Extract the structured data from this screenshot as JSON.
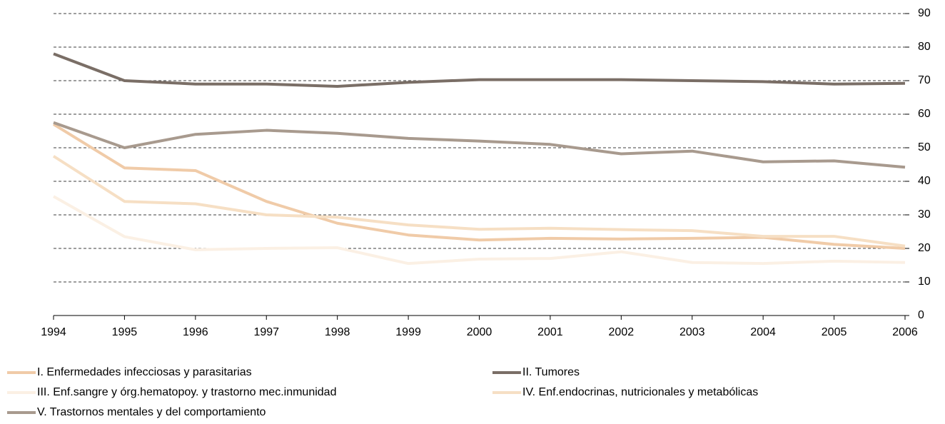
{
  "chart_data": {
    "type": "line",
    "x": [
      1994,
      1995,
      1996,
      1997,
      1998,
      1999,
      2000,
      2001,
      2002,
      2003,
      2004,
      2005,
      2006
    ],
    "xlim": [
      1994,
      2006
    ],
    "xticks": [
      1994,
      1995,
      1996,
      1997,
      1998,
      1999,
      2000,
      2001,
      2002,
      2003,
      2004,
      2005,
      2006
    ],
    "ylim": [
      0,
      90
    ],
    "yticks": [
      0,
      10,
      20,
      30,
      40,
      50,
      60,
      70,
      80,
      90
    ],
    "grid": true,
    "series": [
      {
        "name": "I. Enfermedades infecciosas y parasitarias",
        "color": "#f0cba8",
        "values": [
          57,
          44,
          43.2,
          34,
          27.5,
          24,
          22.5,
          23,
          22.8,
          23,
          23.3,
          21.2,
          20
        ]
      },
      {
        "name": "II. Tumores",
        "color": "#7a6e66",
        "values": [
          78,
          70,
          69,
          69,
          68.3,
          69.5,
          70.3,
          70.3,
          70.3,
          70,
          69.7,
          69,
          69.2
        ]
      },
      {
        "name": "III. Enf.sangre y órg.hematopoy. y trastorno mec.inmunidad",
        "color": "#fbf0e4",
        "values": [
          35.5,
          23.5,
          19.6,
          20,
          20.2,
          15.5,
          16.8,
          17,
          19,
          15.8,
          15.5,
          16.2,
          15.8
        ]
      },
      {
        "name": "IV. Enf.endocrinas, nutricionales y metabólicas",
        "color": "#f6dfc4",
        "values": [
          47.5,
          34,
          33.3,
          30,
          29.3,
          27,
          25.7,
          26,
          25.6,
          25.3,
          23.6,
          23.6,
          20.7
        ]
      },
      {
        "name": "V. Trastornos mentales y del comportamiento",
        "color": "#a89a8e",
        "values": [
          57.5,
          50,
          54,
          55.2,
          54.3,
          52.8,
          52,
          51,
          48.2,
          49,
          45.8,
          46.1,
          44.2
        ]
      }
    ]
  }
}
